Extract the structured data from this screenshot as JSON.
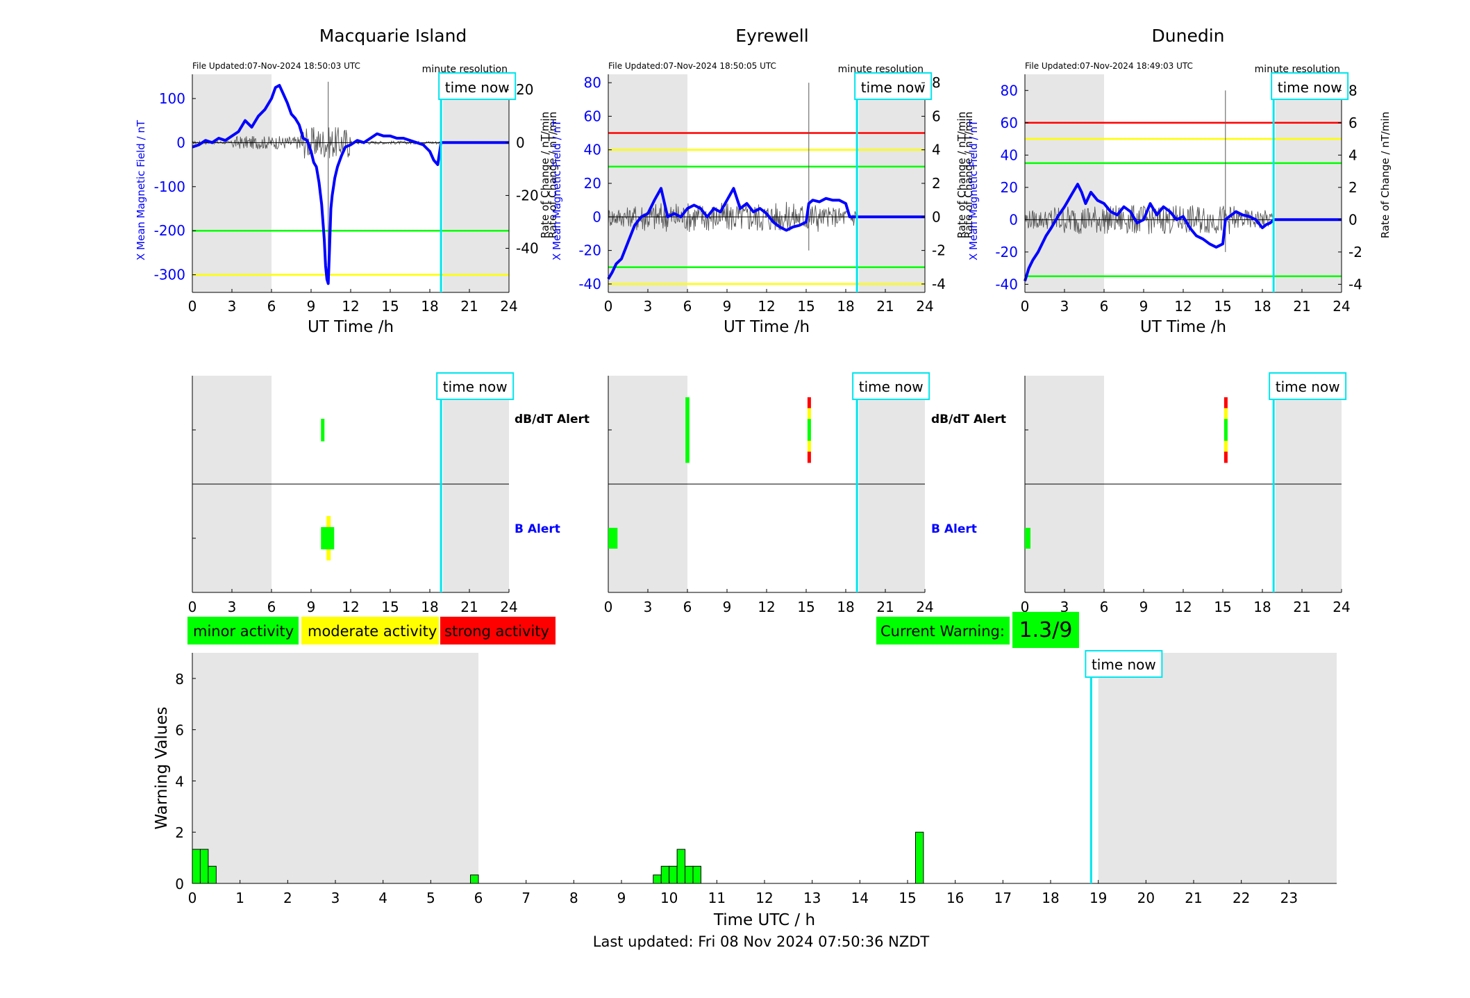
{
  "page": {
    "last_updated": "Last updated: Fri 08 Nov 2024 07:50:36 NZDT"
  },
  "colors": {
    "field_line": "#0000ff",
    "roc_line": "#555555",
    "now_line": "#00e5ee",
    "minor": "#00ff00",
    "moderate": "#ffff00",
    "strong": "#ff0000",
    "night_shade": "#e6e6e6"
  },
  "legend": {
    "minor": "minor activity",
    "moderate": "moderate activity",
    "strong": "strong activity",
    "current_warning_label": "Current Warning:",
    "current_warning_value": "1.3/9"
  },
  "alert_labels": {
    "dbdt": "dB/dT Alert",
    "b": "B Alert"
  },
  "chart_data": [
    {
      "type": "line",
      "panel": "field",
      "title": "Macquarie Island",
      "file_updated": "File Updated:07-Nov-2024 18:50:03 UTC",
      "resolution": "minute resolution",
      "time_now_label": "time now",
      "time_now": 18.85,
      "xlabel": "UT Time /h",
      "ylabel": "X Mean Magnetic Field / nT",
      "ylabel_right": "Rate of Change / nT/min",
      "xlim": [
        0,
        24
      ],
      "xticks": [
        0,
        3,
        6,
        9,
        12,
        15,
        18,
        21,
        24
      ],
      "ylim": [
        -340,
        155
      ],
      "yticks": [
        -300,
        -200,
        -100,
        0,
        100
      ],
      "ylim_right": [
        -56.67,
        25.83
      ],
      "yticks_right": [
        -40,
        -20,
        0,
        20
      ],
      "night_shading": [
        [
          0,
          6
        ],
        [
          19,
          24
        ]
      ],
      "thresholds": [
        {
          "value": -200,
          "color": "#00ff00"
        },
        {
          "value": -300,
          "color": "#ffff00"
        }
      ],
      "series": [
        {
          "x": [
            0,
            0.5,
            1,
            1.5,
            2,
            2.5,
            3,
            3.5,
            4,
            4.5,
            5,
            5.5,
            6,
            6.3,
            6.6,
            6.9,
            7.2,
            7.5,
            7.8,
            8.1,
            8.4,
            8.7,
            9,
            9.2,
            9.4,
            9.6,
            9.8,
            10,
            10.1,
            10.2,
            10.3,
            10.4,
            10.5,
            10.6,
            10.7,
            10.8,
            11,
            11.3,
            11.6,
            12,
            12.5,
            13,
            13.5,
            14,
            14.5,
            15,
            15.5,
            16,
            16.5,
            17,
            17.5,
            18,
            18.3,
            18.6,
            18.85,
            24
          ],
          "y": [
            -10,
            -5,
            5,
            0,
            10,
            5,
            15,
            25,
            50,
            35,
            60,
            75,
            100,
            125,
            130,
            110,
            90,
            65,
            55,
            40,
            10,
            5,
            -20,
            -45,
            -55,
            -90,
            -140,
            -220,
            -280,
            -310,
            -320,
            -240,
            -150,
            -120,
            -100,
            -80,
            -55,
            -30,
            -10,
            -5,
            5,
            0,
            10,
            20,
            15,
            15,
            10,
            10,
            5,
            0,
            -5,
            -20,
            -40,
            -50,
            0,
            0
          ]
        }
      ]
    },
    {
      "type": "line",
      "panel": "field",
      "title": "Eyrewell",
      "file_updated": "File Updated:07-Nov-2024 18:50:05 UTC",
      "resolution": "minute resolution",
      "time_now_label": "time now",
      "time_now": 18.85,
      "xlabel": "UT Time /h",
      "ylabel": "X Mean Magnetic Field / nT",
      "ylabel_right": "Rate of Change / nT/min",
      "xlim": [
        0,
        24
      ],
      "xticks": [
        0,
        3,
        6,
        9,
        12,
        15,
        18,
        21,
        24
      ],
      "ylim": [
        -45,
        85
      ],
      "yticks": [
        -40,
        -20,
        0,
        20,
        40,
        60,
        80
      ],
      "ylim_right": [
        -4.5,
        8.5
      ],
      "yticks_right": [
        -4,
        -2,
        0,
        2,
        4,
        6,
        8
      ],
      "night_shading": [
        [
          0,
          6
        ],
        [
          19,
          24
        ]
      ],
      "thresholds": [
        {
          "value": 50,
          "color": "#ff0000"
        },
        {
          "value": 40,
          "color": "#ffff00"
        },
        {
          "value": 30,
          "color": "#00ff00"
        },
        {
          "value": -30,
          "color": "#00ff00"
        },
        {
          "value": -40,
          "color": "#ffff00"
        }
      ],
      "series": [
        {
          "x": [
            0,
            0.3,
            0.6,
            1,
            1.5,
            2,
            2.5,
            3,
            3.5,
            4,
            4.5,
            5,
            5.5,
            6,
            6.5,
            7,
            7.5,
            8,
            8.5,
            9,
            9.5,
            10,
            10.5,
            11,
            11.5,
            12,
            12.5,
            13,
            13.5,
            14,
            14.5,
            15,
            15.2,
            15.5,
            16,
            16.5,
            17,
            17.5,
            18,
            18.3,
            18.85,
            24
          ],
          "y": [
            -37,
            -33,
            -28,
            -25,
            -15,
            -5,
            0,
            2,
            10,
            17,
            0,
            2,
            0,
            5,
            7,
            5,
            0,
            5,
            3,
            10,
            17,
            5,
            8,
            3,
            5,
            2,
            -3,
            -6,
            -8,
            -6,
            -5,
            -3,
            8,
            10,
            9,
            11,
            10,
            10,
            8,
            0,
            0,
            0
          ]
        }
      ]
    },
    {
      "type": "line",
      "panel": "field",
      "title": "Dunedin",
      "file_updated": "File Updated:07-Nov-2024 18:49:03 UTC",
      "resolution": "minute resolution",
      "time_now_label": "time now",
      "time_now": 18.85,
      "xlabel": "UT Time /h",
      "ylabel": "X Mean Magnetic Field / nT",
      "ylabel_right": "Rate of Change / nT/min",
      "xlim": [
        0,
        24
      ],
      "xticks": [
        0,
        3,
        6,
        9,
        12,
        15,
        18,
        21,
        24
      ],
      "ylim": [
        -45,
        90
      ],
      "yticks": [
        -40,
        -20,
        0,
        20,
        40,
        60,
        80
      ],
      "ylim_right": [
        -4.5,
        9
      ],
      "yticks_right": [
        -4,
        -2,
        0,
        2,
        4,
        6,
        8
      ],
      "night_shading": [
        [
          0,
          6
        ],
        [
          19,
          24
        ]
      ],
      "thresholds": [
        {
          "value": 60,
          "color": "#ff0000"
        },
        {
          "value": 50,
          "color": "#ffff00"
        },
        {
          "value": 35,
          "color": "#00ff00"
        },
        {
          "value": -35,
          "color": "#00ff00"
        }
      ],
      "series": [
        {
          "x": [
            0,
            0.3,
            0.6,
            1,
            1.3,
            1.6,
            2,
            2.5,
            3,
            3.5,
            4,
            4.3,
            4.6,
            5,
            5.5,
            6,
            6.5,
            7,
            7.5,
            8,
            8.5,
            9,
            9.5,
            10,
            10.5,
            11,
            11.5,
            12,
            12.5,
            13,
            13.5,
            14,
            14.5,
            15,
            15.2,
            15.5,
            16,
            16.5,
            17,
            17.5,
            18,
            18.3,
            18.6,
            18.85,
            24
          ],
          "y": [
            -38,
            -30,
            -25,
            -20,
            -15,
            -10,
            -5,
            2,
            8,
            15,
            22,
            17,
            10,
            17,
            12,
            10,
            5,
            3,
            8,
            5,
            -2,
            0,
            10,
            3,
            8,
            5,
            0,
            2,
            -5,
            -10,
            -12,
            -15,
            -17,
            -15,
            0,
            2,
            5,
            3,
            2,
            0,
            -5,
            -3,
            -2,
            0,
            0
          ]
        }
      ]
    },
    {
      "type": "bar",
      "panel": "alert",
      "station": "Macquarie Island",
      "time_now_label": "time now",
      "time_now": 18.85,
      "xlim": [
        0,
        24
      ],
      "xticks": [
        0,
        3,
        6,
        9,
        12,
        15,
        18,
        21,
        24
      ],
      "night_shading": [
        [
          0,
          6
        ],
        [
          19,
          24
        ]
      ],
      "dbdt_alerts": [
        {
          "start": 9.75,
          "end": 10.0,
          "levels": [
            "minor"
          ]
        }
      ],
      "b_alerts": [
        {
          "start": 9.75,
          "end": 10.75,
          "levels": [
            "moderate",
            "minor",
            "minor",
            "moderate"
          ]
        }
      ]
    },
    {
      "type": "bar",
      "panel": "alert",
      "station": "Eyrewell",
      "time_now_label": "time now",
      "time_now": 18.85,
      "xlim": [
        0,
        24
      ],
      "xticks": [
        0,
        3,
        6,
        9,
        12,
        15,
        18,
        21,
        24
      ],
      "night_shading": [
        [
          0,
          6
        ],
        [
          19,
          24
        ]
      ],
      "dbdt_alerts": [
        {
          "start": 5.85,
          "end": 6.15,
          "levels": [
            "minor"
          ]
        },
        {
          "start": 15.1,
          "end": 15.35,
          "levels": [
            "strong",
            "moderate",
            "minor",
            "minor",
            "moderate",
            "strong"
          ]
        }
      ],
      "b_alerts": [
        {
          "start": 0.0,
          "end": 0.7,
          "levels": [
            "minor"
          ]
        }
      ]
    },
    {
      "type": "bar",
      "panel": "alert",
      "station": "Dunedin",
      "time_now_label": "time now",
      "time_now": 18.85,
      "xlim": [
        0,
        24
      ],
      "xticks": [
        0,
        3,
        6,
        9,
        12,
        15,
        18,
        21,
        24
      ],
      "night_shading": [
        [
          0,
          6
        ],
        [
          19,
          24
        ]
      ],
      "dbdt_alerts": [
        {
          "start": 15.1,
          "end": 15.35,
          "levels": [
            "strong",
            "moderate",
            "minor",
            "minor",
            "moderate",
            "strong"
          ]
        }
      ],
      "b_alerts": [
        {
          "start": 0.0,
          "end": 0.4,
          "levels": [
            "minor"
          ]
        }
      ]
    },
    {
      "type": "bar",
      "panel": "warning",
      "xlabel": "Time UTC / h",
      "ylabel": "Warning Values",
      "time_now_label": "time now",
      "time_now": 18.85,
      "xlim": [
        0,
        24
      ],
      "xticks": [
        0,
        1,
        2,
        3,
        4,
        5,
        6,
        7,
        8,
        9,
        10,
        11,
        12,
        13,
        14,
        15,
        16,
        17,
        18,
        19,
        20,
        21,
        22,
        23
      ],
      "ylim": [
        0,
        9
      ],
      "yticks": [
        0,
        2,
        4,
        6,
        8
      ],
      "night_shading": [
        [
          0,
          6
        ],
        [
          19,
          24
        ]
      ],
      "bin_width": 0.1667,
      "bins": [
        {
          "start": 0.0,
          "value": 1.33
        },
        {
          "start": 0.1667,
          "value": 1.33
        },
        {
          "start": 0.3333,
          "value": 0.67
        },
        {
          "start": 5.8333,
          "value": 0.33
        },
        {
          "start": 9.6667,
          "value": 0.33
        },
        {
          "start": 9.8333,
          "value": 0.67
        },
        {
          "start": 10.0,
          "value": 0.67
        },
        {
          "start": 10.1667,
          "value": 1.33
        },
        {
          "start": 10.3333,
          "value": 0.67
        },
        {
          "start": 10.5,
          "value": 0.67
        },
        {
          "start": 15.1667,
          "value": 2.0
        }
      ]
    }
  ]
}
